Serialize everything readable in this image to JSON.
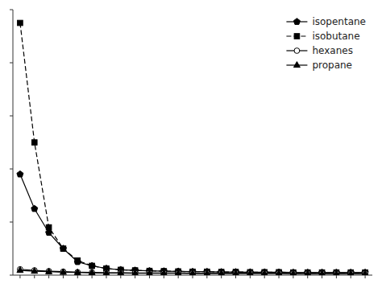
{
  "chart_data": {
    "type": "line",
    "x": [
      1,
      2,
      3,
      4,
      5,
      6,
      7,
      8,
      9,
      10,
      11,
      12,
      13,
      14,
      15,
      16,
      17,
      18,
      19,
      20,
      21,
      22,
      23,
      24,
      25
    ],
    "series": [
      {
        "name": "isopentane",
        "color": "#000000",
        "marker": "pentagon",
        "line_style": "solid",
        "values": [
          3.8,
          2.5,
          1.6,
          1.0,
          0.5,
          0.35,
          0.25,
          0.2,
          0.18,
          0.16,
          0.15,
          0.14,
          0.13,
          0.13,
          0.12,
          0.12,
          0.11,
          0.11,
          0.11,
          0.1,
          0.1,
          0.1,
          0.1,
          0.1,
          0.1
        ]
      },
      {
        "name": "isobutane",
        "color": "#000000",
        "marker": "square",
        "line_style": "dashed",
        "values": [
          9.5,
          5.0,
          1.8,
          1.0,
          0.55,
          0.35,
          0.25,
          0.2,
          0.18,
          0.16,
          0.15,
          0.14,
          0.13,
          0.13,
          0.12,
          0.12,
          0.11,
          0.11,
          0.11,
          0.1,
          0.1,
          0.1,
          0.1,
          0.1,
          0.1
        ]
      },
      {
        "name": "hexanes",
        "color": "#000000",
        "marker": "open-circle",
        "line_style": "solid",
        "values": [
          0.22,
          0.18,
          0.15,
          0.13,
          0.11,
          0.1,
          0.09,
          0.09,
          0.08,
          0.08,
          0.08,
          0.08,
          0.07,
          0.07,
          0.07,
          0.07,
          0.07,
          0.07,
          0.07,
          0.06,
          0.06,
          0.06,
          0.06,
          0.06,
          0.06
        ]
      },
      {
        "name": "propane",
        "color": "#000000",
        "marker": "triangle",
        "line_style": "solid",
        "values": [
          0.18,
          0.15,
          0.13,
          0.11,
          0.1,
          0.09,
          0.08,
          0.08,
          0.07,
          0.07,
          0.07,
          0.07,
          0.06,
          0.06,
          0.06,
          0.06,
          0.06,
          0.06,
          0.06,
          0.05,
          0.05,
          0.05,
          0.05,
          0.05,
          0.05
        ]
      }
    ],
    "xlim": [
      0.5,
      25.5
    ],
    "ylim": [
      0,
      10
    ],
    "xticks": [
      1,
      2,
      3,
      4,
      5,
      6,
      7,
      8,
      9,
      10,
      11,
      12,
      13,
      14,
      15,
      16,
      17,
      18,
      19,
      20,
      21,
      22,
      23,
      24,
      25
    ],
    "yticks": [
      0,
      2,
      4,
      6,
      8,
      10
    ],
    "tick_labels": false,
    "grid": false,
    "legend": "upper right"
  }
}
